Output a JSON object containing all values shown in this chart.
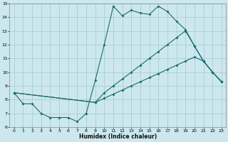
{
  "xlabel": "Humidex (Indice chaleur)",
  "xlim": [
    -0.5,
    23.5
  ],
  "ylim": [
    6,
    15
  ],
  "xticks": [
    0,
    1,
    2,
    3,
    4,
    5,
    6,
    7,
    8,
    9,
    10,
    11,
    12,
    13,
    14,
    15,
    16,
    17,
    18,
    19,
    20,
    21,
    22,
    23
  ],
  "yticks": [
    6,
    7,
    8,
    9,
    10,
    11,
    12,
    13,
    14,
    15
  ],
  "bg_color": "#cce8ee",
  "grid_color": "#aaccd4",
  "line_color": "#1a6b6b",
  "line1_x": [
    0,
    1,
    2,
    3,
    4,
    5,
    6,
    7,
    8,
    9,
    10,
    11,
    12,
    13,
    14,
    15,
    16,
    17,
    18,
    19,
    20,
    21,
    22,
    23
  ],
  "line1_y": [
    8.5,
    7.7,
    7.7,
    7.0,
    6.7,
    6.7,
    6.7,
    6.4,
    7.0,
    9.4,
    12.0,
    14.8,
    14.1,
    14.5,
    14.3,
    14.2,
    14.8,
    14.4,
    13.7,
    13.1,
    11.9,
    10.8,
    10.0,
    9.3
  ],
  "line2_x": [
    0,
    9,
    10,
    11,
    12,
    13,
    14,
    15,
    16,
    17,
    18,
    19,
    20,
    21,
    22,
    23
  ],
  "line2_y": [
    8.5,
    7.8,
    8.1,
    8.4,
    8.7,
    9.0,
    9.3,
    9.6,
    9.9,
    10.2,
    10.5,
    10.8,
    11.1,
    10.8,
    10.0,
    9.3
  ],
  "line3_x": [
    0,
    9,
    10,
    11,
    12,
    13,
    14,
    15,
    16,
    17,
    18,
    19,
    20,
    21,
    22,
    23
  ],
  "line3_y": [
    8.5,
    7.8,
    8.5,
    9.0,
    9.5,
    10.0,
    10.5,
    11.0,
    11.5,
    12.0,
    12.5,
    13.0,
    11.9,
    10.8,
    10.0,
    9.3
  ]
}
